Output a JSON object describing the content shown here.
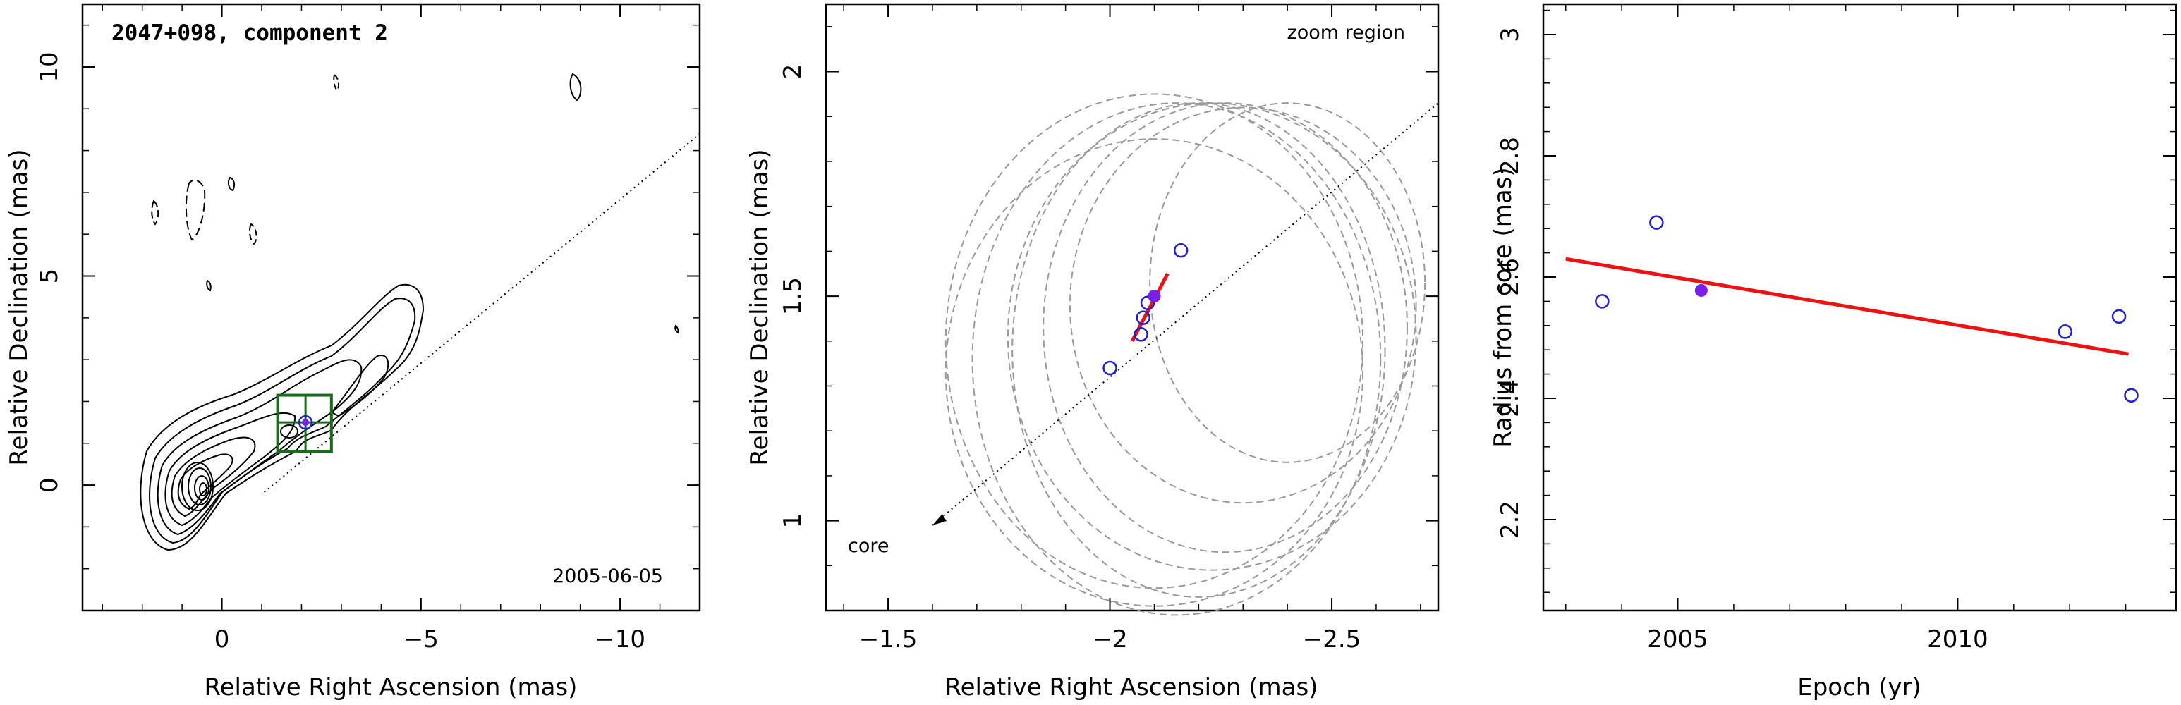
{
  "chart_data": [
    {
      "type": "contour",
      "title": "2047+098, component 2",
      "date_label": "2005-06-05",
      "xlabel": "Relative Right Ascension (mas)",
      "ylabel": "Relative Declination (mas)",
      "xlim": [
        3.5,
        -12
      ],
      "ylim": [
        -3,
        11.5
      ],
      "xticks": [
        0,
        -5,
        -10
      ],
      "xtick_labels": [
        "0",
        "−5",
        "−10"
      ],
      "yticks": [
        0,
        5,
        10
      ],
      "ytick_labels": [
        "0",
        "5",
        "10"
      ],
      "core": [
        0,
        0
      ],
      "component": [
        -2.1,
        1.5
      ],
      "zoom_box": {
        "x": [
          -1.4,
          -2.75
        ],
        "y": [
          0.8,
          2.15
        ]
      },
      "jet_axis_end": [
        -12,
        8.4
      ]
    },
    {
      "type": "scatter",
      "label_zoom": "zoom region",
      "label_core": "core",
      "xlabel": "Relative Right Ascension (mas)",
      "ylabel": "Relative Declination (mas)",
      "xlim": [
        -1.36,
        -2.74
      ],
      "ylim": [
        0.8,
        2.15
      ],
      "xticks": [
        -1.5,
        -2,
        -2.5
      ],
      "xtick_labels": [
        "−1.5",
        "−2",
        "−2.5"
      ],
      "yticks": [
        1,
        1.5,
        2
      ],
      "ytick_labels": [
        "1",
        "1.5",
        "2"
      ],
      "points_open": [
        {
          "x": -2.0,
          "y": 1.34
        },
        {
          "x": -2.07,
          "y": 1.415
        },
        {
          "x": -2.075,
          "y": 1.452
        },
        {
          "x": -2.085,
          "y": 1.485
        },
        {
          "x": -2.16,
          "y": 1.602
        }
      ],
      "point_filled": {
        "x": -2.1,
        "y": 1.5
      },
      "velocity_line": [
        [
          -2.05,
          1.4
        ],
        [
          -2.13,
          1.55
        ]
      ],
      "jet_axis": [
        [
          -1.6,
          0.99
        ],
        [
          -2.74,
          1.93
        ]
      ],
      "ellipses": [
        {
          "cx": -2.1,
          "cy": 1.4,
          "rx": 0.47,
          "ry": 0.55
        },
        {
          "cx": -2.15,
          "cy": 1.36,
          "rx": 0.46,
          "ry": 0.57
        },
        {
          "cx": -2.2,
          "cy": 1.38,
          "rx": 0.42,
          "ry": 0.55
        },
        {
          "cx": -2.23,
          "cy": 1.41,
          "rx": 0.46,
          "ry": 0.52
        },
        {
          "cx": -2.26,
          "cy": 1.43,
          "rx": 0.41,
          "ry": 0.5
        },
        {
          "cx": -2.3,
          "cy": 1.48,
          "rx": 0.39,
          "ry": 0.44
        },
        {
          "cx": -2.4,
          "cy": 1.53,
          "rx": 0.31,
          "ry": 0.4
        },
        {
          "cx": -2.1,
          "cy": 1.33,
          "rx": 0.47,
          "ry": 0.52
        }
      ]
    },
    {
      "type": "scatter",
      "xlabel": "Epoch (yr)",
      "ylabel": "Radius from core (mas)",
      "xlim": [
        2002.6,
        2013.9
      ],
      "ylim": [
        2.05,
        3.05
      ],
      "xticks": [
        2005,
        2010
      ],
      "xtick_labels": [
        "2005",
        "2010"
      ],
      "yticks": [
        2.2,
        2.4,
        2.6,
        2.8,
        3.0
      ],
      "ytick_labels": [
        "2.2",
        "2.4",
        "2.6",
        "2.8",
        "3"
      ],
      "points_open": [
        {
          "x": 2003.65,
          "y": 2.56
        },
        {
          "x": 2004.62,
          "y": 2.69
        },
        {
          "x": 2011.92,
          "y": 2.51
        },
        {
          "x": 2012.88,
          "y": 2.535
        },
        {
          "x": 2013.1,
          "y": 2.405
        }
      ],
      "point_filled": {
        "x": 2005.42,
        "y": 2.578
      },
      "fit_line": [
        [
          2003.0,
          2.63
        ],
        [
          2013.05,
          2.473
        ]
      ]
    }
  ],
  "colors": {
    "open_marker": "#1f1fd6",
    "filled_marker": "#7a1fe6",
    "fit_line": "#ee1111",
    "zoom_box": "#1a6b1a",
    "ellipse": "#9a9a9a"
  }
}
